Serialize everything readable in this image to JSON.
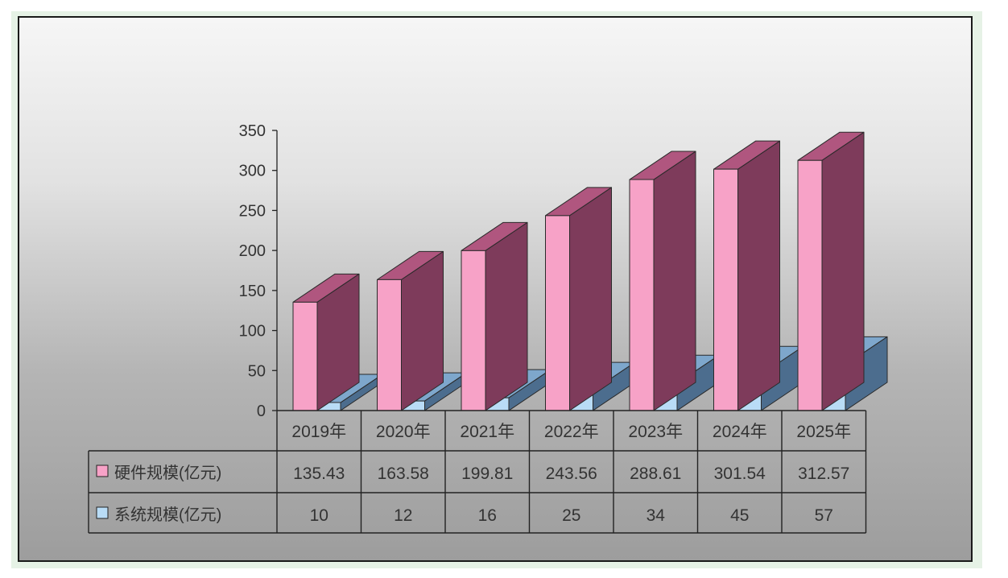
{
  "chart_data": {
    "type": "bar",
    "categories": [
      "2019年",
      "2020年",
      "2021年",
      "2022年",
      "2023年",
      "2024年",
      "2025年"
    ],
    "series": [
      {
        "name": "硬件规模(亿元)",
        "values": [
          135.43,
          163.58,
          199.81,
          243.56,
          288.61,
          301.54,
          312.57
        ],
        "value_labels": [
          "135.43",
          "163.58",
          "199.81",
          "243.56",
          "288.61",
          "301.54",
          "312.57"
        ],
        "color": "#f7a2c7"
      },
      {
        "name": "系统规模(亿元)",
        "values": [
          10,
          12,
          16,
          25,
          34,
          45,
          57
        ],
        "value_labels": [
          "10",
          "12",
          "16",
          "25",
          "34",
          "45",
          "57"
        ],
        "color": "#b9dcf6"
      }
    ],
    "ylim": [
      0,
      350
    ],
    "yticks": [
      "0",
      "50",
      "100",
      "150",
      "200",
      "250",
      "300",
      "350"
    ],
    "title": "",
    "xlabel": "",
    "ylabel": "",
    "grid": false,
    "style": "3d-clustered-bar-with-data-table"
  }
}
